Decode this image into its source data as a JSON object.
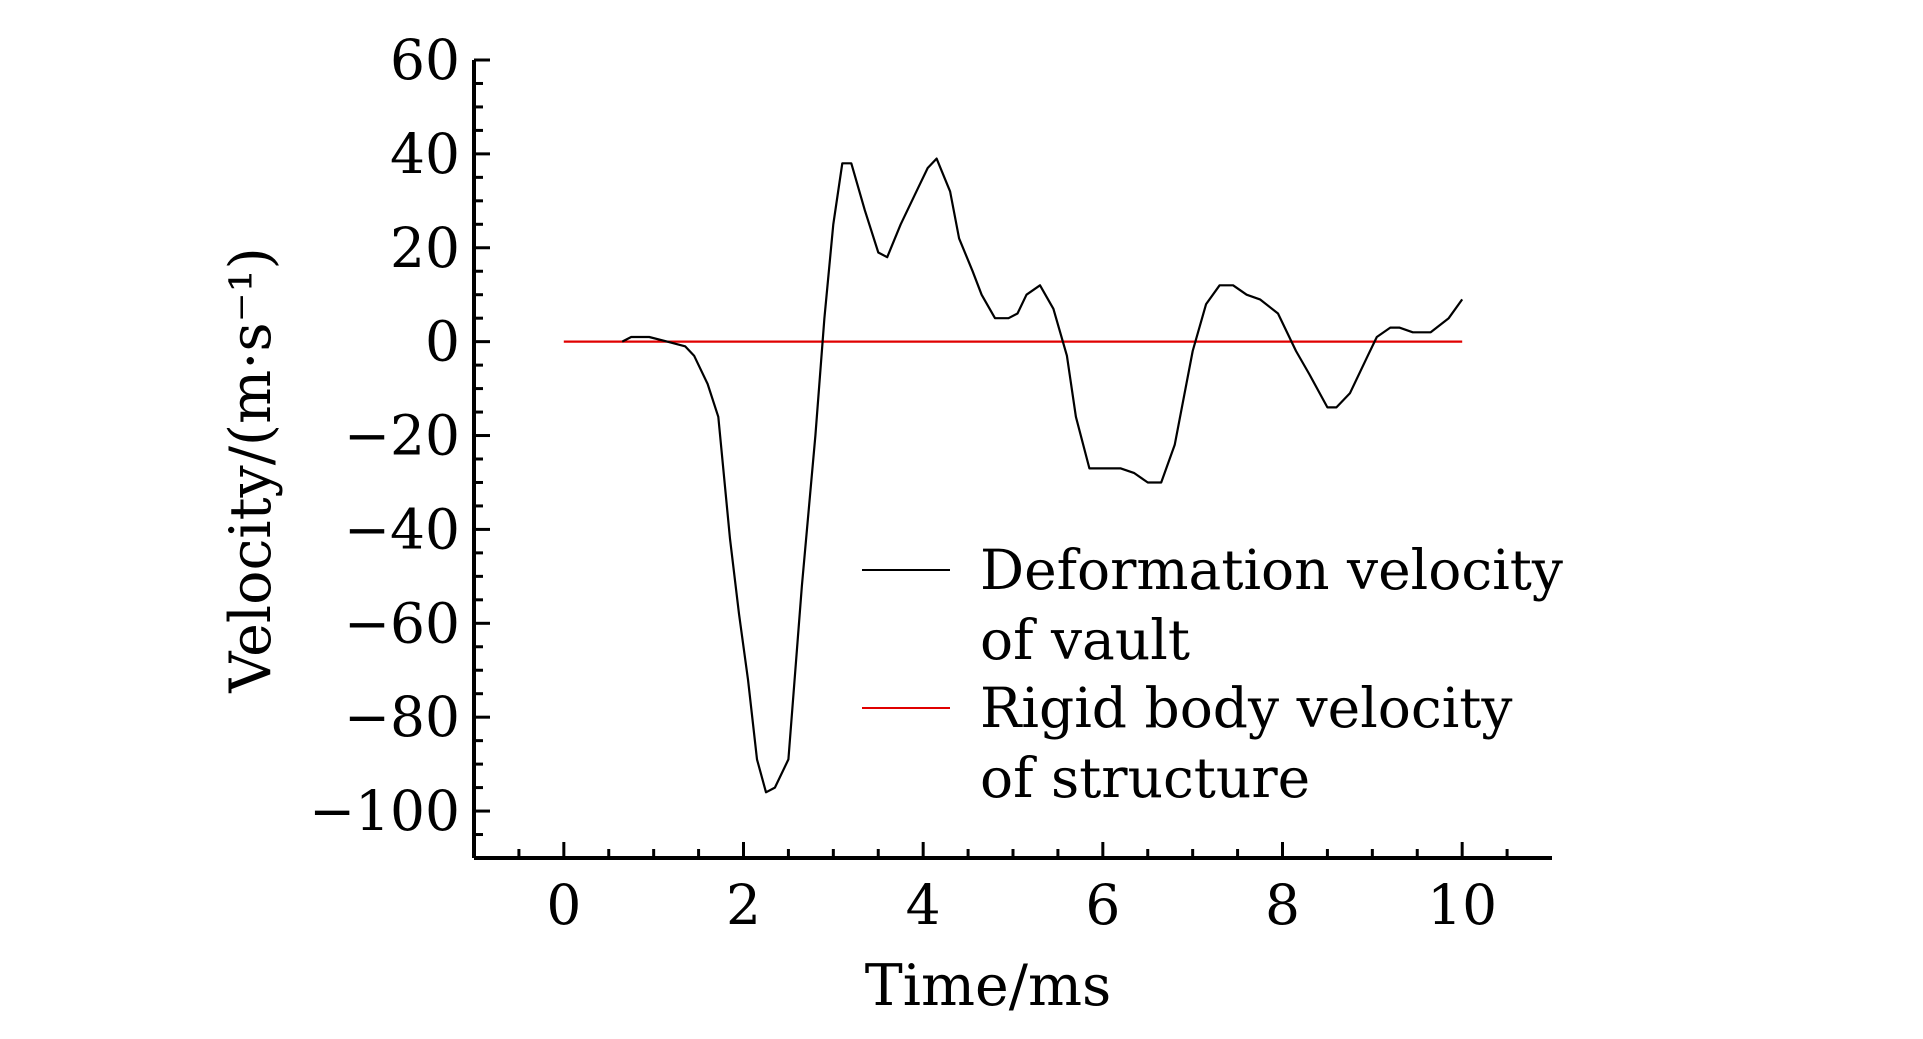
{
  "chart_data": {
    "type": "line",
    "title": "",
    "xlabel": "Time/ms",
    "ylabel": "Velocity/(m·s⁻¹)",
    "xlim": [
      -1,
      11
    ],
    "ylim": [
      -110,
      60
    ],
    "xticks": [
      0,
      2,
      4,
      6,
      8,
      10
    ],
    "yticks": [
      60,
      40,
      20,
      0,
      -20,
      -40,
      -60,
      -80,
      -100
    ],
    "xtick_labels": [
      "0",
      "2",
      "4",
      "6",
      "8",
      "10"
    ],
    "ytick_labels": [
      "60",
      "40",
      "20",
      "0",
      "−20",
      "−40",
      "−60",
      "−80",
      "−100"
    ],
    "grid": false,
    "legend_position": "lower-right",
    "legend": [
      {
        "lines": [
          "Deformation velocity",
          "of vault"
        ],
        "color": "#000000"
      },
      {
        "lines": [
          "Rigid body velocity",
          "of structure"
        ],
        "color": "#e00000"
      }
    ],
    "series": [
      {
        "name": "Deformation velocity of vault",
        "color": "#000000",
        "x": [
          0.65,
          0.75,
          0.95,
          1.15,
          1.35,
          1.45,
          1.6,
          1.72,
          1.85,
          1.95,
          2.05,
          2.15,
          2.25,
          2.35,
          2.5,
          2.65,
          2.8,
          2.9,
          3.0,
          3.1,
          3.2,
          3.35,
          3.5,
          3.6,
          3.75,
          3.95,
          4.05,
          4.15,
          4.3,
          4.4,
          4.55,
          4.65,
          4.8,
          4.95,
          5.05,
          5.15,
          5.3,
          5.45,
          5.6,
          5.7,
          5.85,
          6.0,
          6.2,
          6.35,
          6.5,
          6.65,
          6.8,
          7.0,
          7.15,
          7.3,
          7.45,
          7.6,
          7.75,
          7.95,
          8.15,
          8.3,
          8.5,
          8.6,
          8.75,
          8.95,
          9.05,
          9.2,
          9.3,
          9.45,
          9.65,
          9.85,
          10.0
        ],
        "y": [
          0,
          1,
          1,
          0,
          -1,
          -3,
          -9,
          -16,
          -42,
          -58,
          -72,
          -89,
          -96,
          -95,
          -89,
          -52,
          -20,
          5,
          25,
          38,
          38,
          28,
          19,
          18,
          25,
          33,
          37,
          39,
          32,
          22,
          15,
          10,
          5,
          5,
          6,
          10,
          12,
          7,
          -3,
          -16,
          -27,
          -27,
          -27,
          -28,
          -30,
          -30,
          -22,
          -2,
          8,
          12,
          12,
          10,
          9,
          6,
          -2,
          -7,
          -14,
          -14,
          -11,
          -3,
          1,
          3,
          3,
          2,
          2,
          5,
          9
        ]
      },
      {
        "name": "Rigid body velocity of structure",
        "color": "#e00000",
        "x": [
          0,
          10
        ],
        "y": [
          0,
          0
        ]
      }
    ]
  }
}
